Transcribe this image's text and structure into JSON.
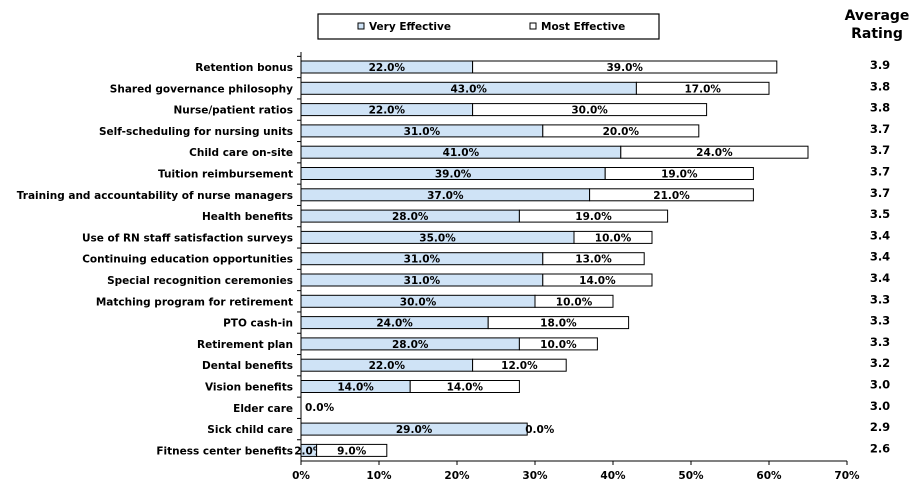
{
  "chart_data": {
    "type": "bar",
    "orientation": "horizontal",
    "stacked": true,
    "categories": [
      "Retention bonus",
      "Shared governance philosophy",
      "Nurse/patient ratios",
      "Self-scheduling for nursing units",
      "Child care on-site",
      "Tuition reimbursement",
      "Training and accountability of nurse managers",
      "Health benefits",
      "Use of RN staff satisfaction surveys",
      "Continuing education opportunities",
      "Special recognition ceremonies",
      "Matching program for retirement",
      "PTO cash-in",
      "Retirement plan",
      "Dental benefits",
      "Vision benefits",
      "Elder care",
      "Sick child care",
      "Fitness center benefits"
    ],
    "series": [
      {
        "name": "Very Effective",
        "color": "#cfe3f6",
        "values": [
          22,
          43,
          22,
          31,
          41,
          39,
          37,
          28,
          35,
          31,
          31,
          30,
          24,
          28,
          22,
          14,
          0,
          29,
          2
        ],
        "labels": [
          "22.0%",
          "43.0%",
          "22.0%",
          "31.0%",
          "41.0%",
          "39.0%",
          "37.0%",
          "28.0%",
          "35.0%",
          "31.0%",
          "31.0%",
          "30.0%",
          "24.0%",
          "28.0%",
          "22.0%",
          "14.0%",
          "0.0%",
          "29.0%",
          "2.0%"
        ]
      },
      {
        "name": "Most Effective",
        "color": "#ffffff",
        "values": [
          39,
          17,
          30,
          20,
          24,
          19,
          21,
          19,
          10,
          13,
          14,
          10,
          18,
          10,
          12,
          14,
          null,
          0,
          9
        ],
        "labels": [
          "39.0%",
          "17.0%",
          "30.0%",
          "20.0%",
          "24.0%",
          "19.0%",
          "21.0%",
          "19.0%",
          "10.0%",
          "13.0%",
          "14.0%",
          "10.0%",
          "18.0%",
          "10.0%",
          "12.0%",
          "14.0%",
          "",
          "0.0%",
          "9.0%"
        ]
      }
    ],
    "xlim": [
      0,
      70
    ],
    "xticks": [
      "0%",
      "10%",
      "20%",
      "30%",
      "40%",
      "50%",
      "60%",
      "70%"
    ],
    "legend": "top",
    "grid": false,
    "extra_column": {
      "title_line1": "Average",
      "title_line2": "Rating",
      "values": [
        "3.9",
        "3.8",
        "3.8",
        "3.7",
        "3.7",
        "3.7",
        "3.7",
        "3.5",
        "3.4",
        "3.4",
        "3.4",
        "3.3",
        "3.3",
        "3.3",
        "3.2",
        "3.0",
        "3.0",
        "2.9",
        "2.6"
      ]
    }
  }
}
